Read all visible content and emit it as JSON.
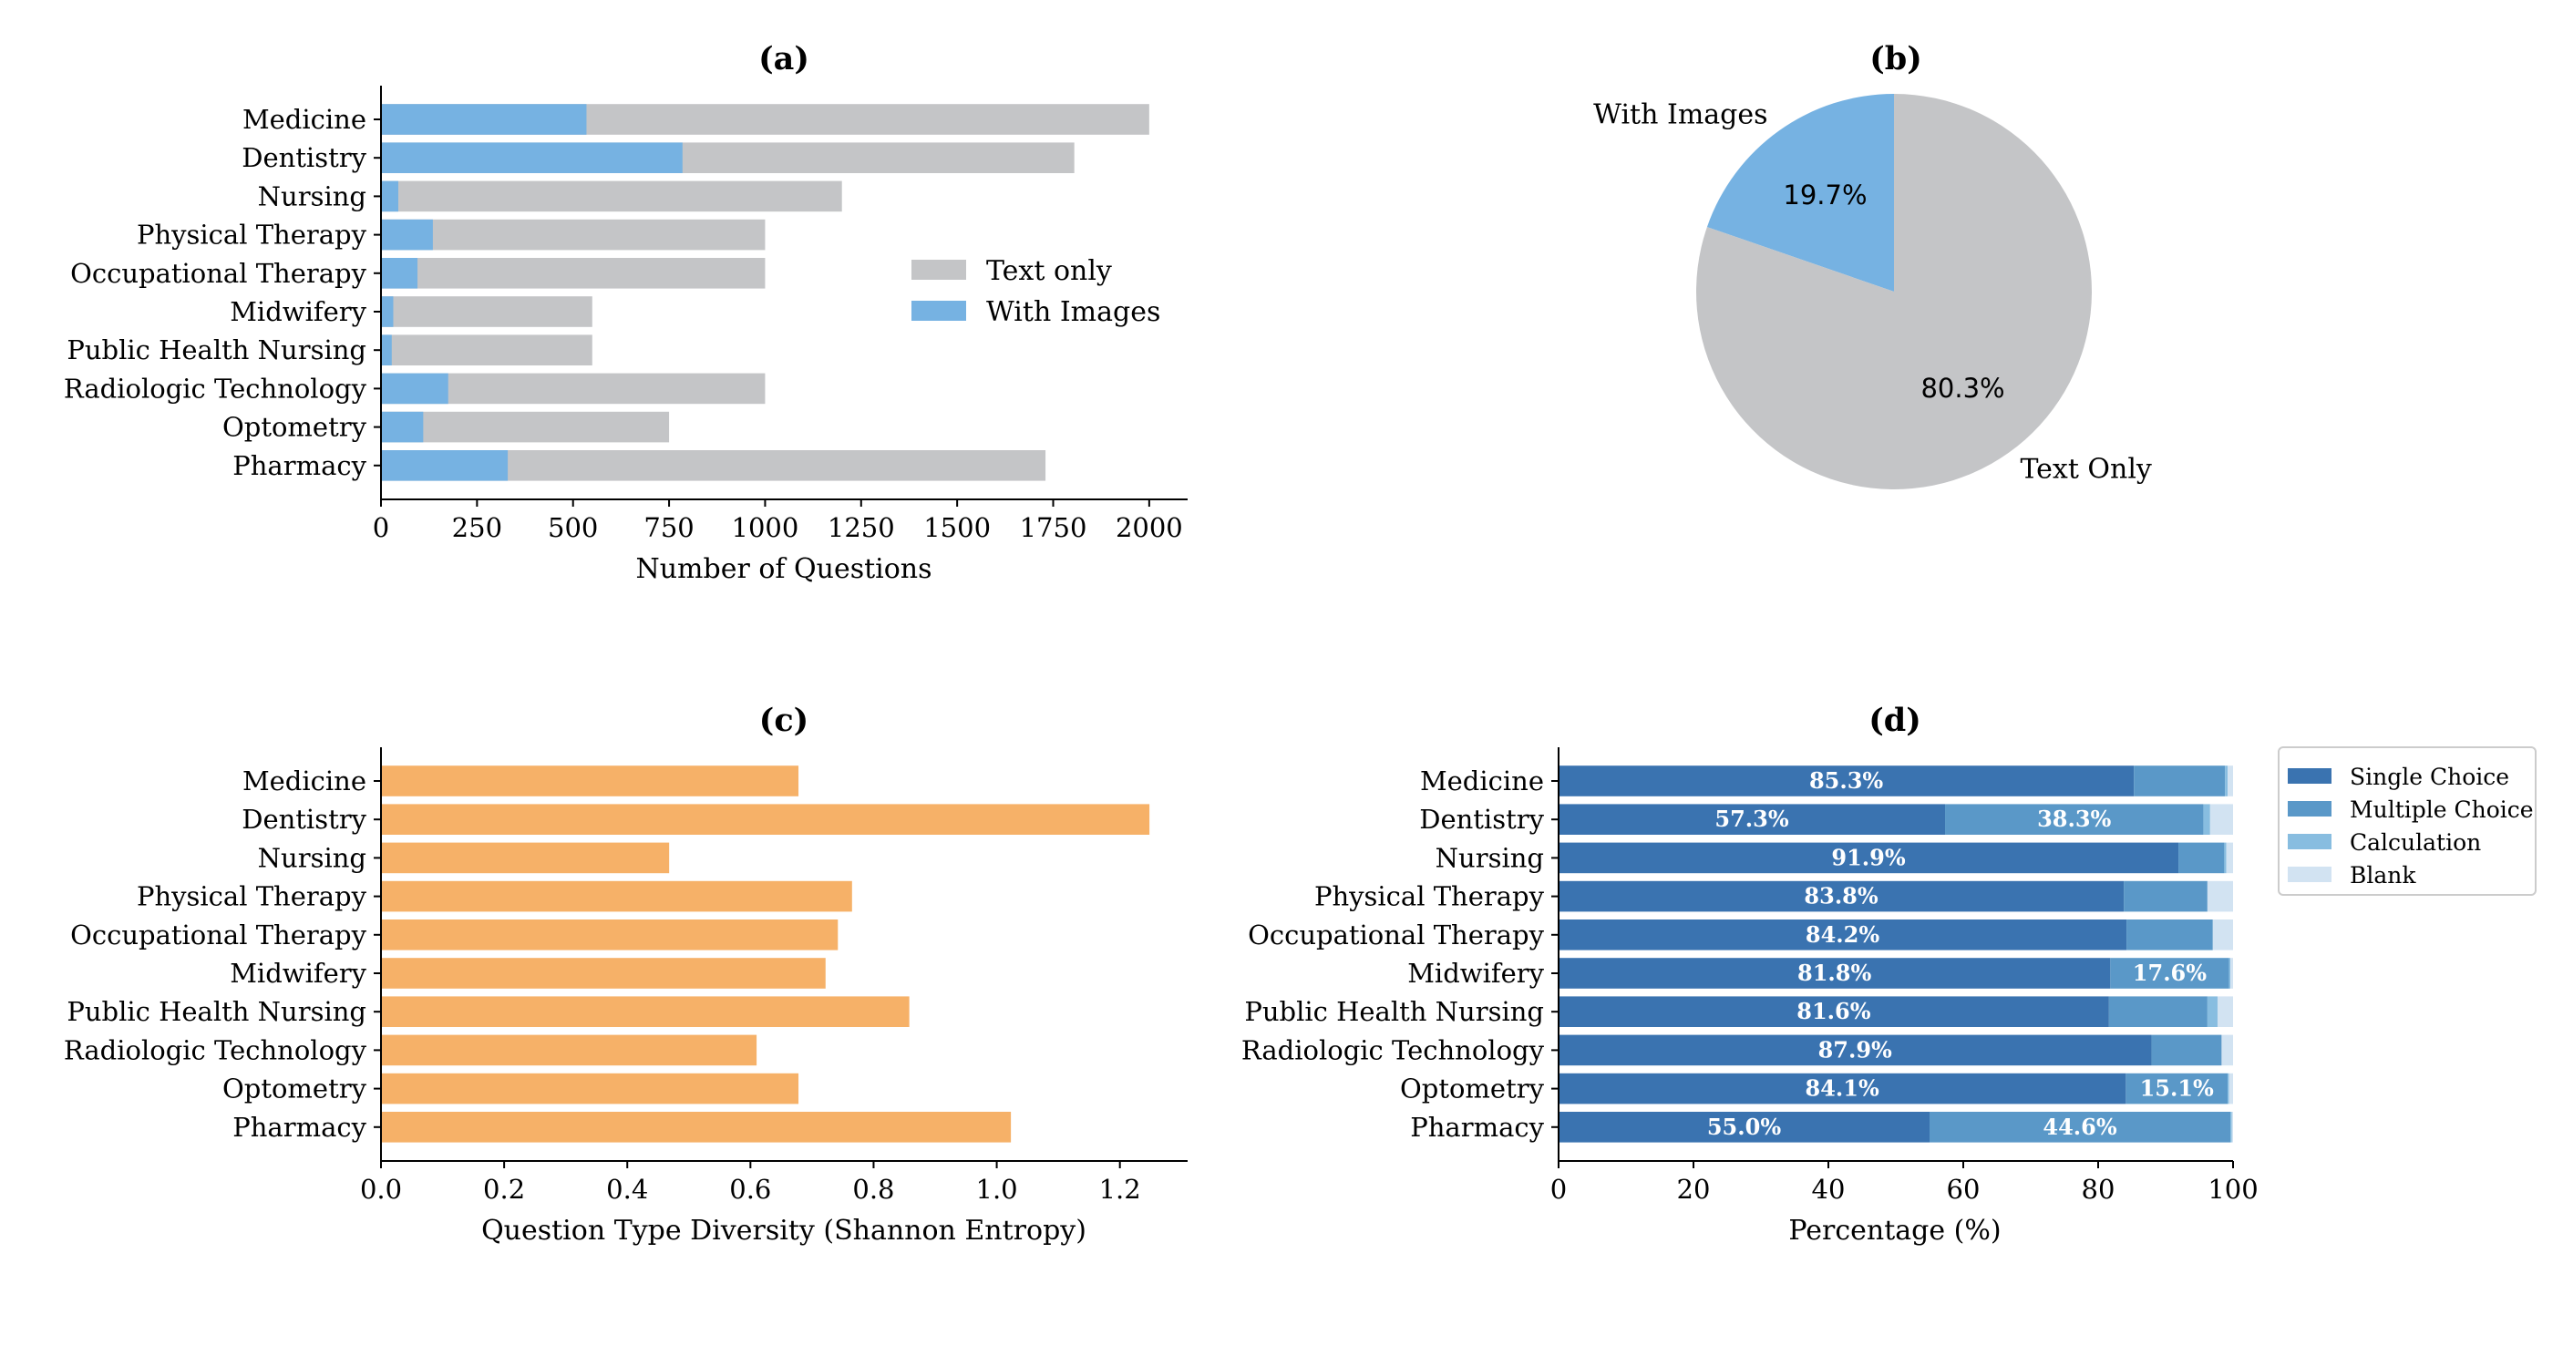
{
  "colors": {
    "text_only": "#c4c5c7",
    "with_images": "#76b2e2",
    "diversity": "#f6b168",
    "single_choice": "#3a73b0",
    "multiple_choice": "#5a98c8",
    "calculation": "#88bde0",
    "blank": "#d2e3f2"
  },
  "chart_data": [
    {
      "id": "a",
      "type": "bar",
      "orientation": "horizontal",
      "stacked": "overlay",
      "title": "(a)",
      "xlabel": "Number of Questions",
      "ylabel": "",
      "xlim": [
        0,
        2100
      ],
      "xticks": [
        0,
        250,
        500,
        750,
        1000,
        1250,
        1500,
        1750,
        2000
      ],
      "xtick_labels": [
        "0",
        "250",
        "500",
        "750",
        "1000",
        "1250",
        "1500",
        "1750",
        "2000"
      ],
      "categories": [
        "Medicine",
        "Dentistry",
        "Nursing",
        "Physical Therapy",
        "Occupational Therapy",
        "Midwifery",
        "Public Health Nursing",
        "Radiologic Technology",
        "Optometry",
        "Pharmacy"
      ],
      "series": [
        {
          "name": "Text only",
          "values": [
            2000,
            1805,
            1200,
            1000,
            1000,
            550,
            550,
            1000,
            750,
            1730
          ]
        },
        {
          "name": "With Images",
          "values": [
            535,
            785,
            45,
            135,
            95,
            32,
            28,
            175,
            110,
            330
          ]
        }
      ],
      "legend": {
        "position": "center-right",
        "entries": [
          "Text only",
          "With Images"
        ]
      }
    },
    {
      "id": "b",
      "type": "pie",
      "title": "(b)",
      "slices": [
        {
          "name": "With Images",
          "value": 19.7,
          "label": "19.7%"
        },
        {
          "name": "Text Only",
          "value": 80.3,
          "label": "80.3%"
        }
      ]
    },
    {
      "id": "c",
      "type": "bar",
      "orientation": "horizontal",
      "title": "(c)",
      "xlabel": "Question Type Diversity (Shannon Entropy)",
      "ylabel": "",
      "xlim": [
        0,
        1.31
      ],
      "xticks": [
        0,
        0.2,
        0.4,
        0.6,
        0.8,
        1.0,
        1.2
      ],
      "xtick_labels": [
        "0.0",
        "0.2",
        "0.4",
        "0.6",
        "0.8",
        "1.0",
        "1.2"
      ],
      "categories": [
        "Medicine",
        "Dentistry",
        "Nursing",
        "Physical Therapy",
        "Occupational Therapy",
        "Midwifery",
        "Public Health Nursing",
        "Radiologic Technology",
        "Optometry",
        "Pharmacy"
      ],
      "values": [
        0.678,
        1.248,
        0.468,
        0.765,
        0.742,
        0.722,
        0.858,
        0.61,
        0.678,
        1.023
      ]
    },
    {
      "id": "d",
      "type": "bar",
      "orientation": "horizontal",
      "stacked": true,
      "title": "(d)",
      "xlabel": "Percentage (%)",
      "ylabel": "",
      "xlim": [
        0,
        100
      ],
      "xticks": [
        0,
        20,
        40,
        60,
        80,
        100
      ],
      "xtick_labels": [
        "0",
        "20",
        "40",
        "60",
        "80",
        "100"
      ],
      "categories": [
        "Medicine",
        "Dentistry",
        "Nursing",
        "Physical Therapy",
        "Occupational Therapy",
        "Midwifery",
        "Public Health Nursing",
        "Radiologic Technology",
        "Optometry",
        "Pharmacy"
      ],
      "series": [
        {
          "name": "Single Choice",
          "values": [
            85.3,
            57.3,
            91.9,
            83.8,
            84.2,
            81.8,
            81.6,
            87.9,
            84.1,
            55.0
          ],
          "labels": [
            "85.3%",
            "57.3%",
            "91.9%",
            "83.8%",
            "84.2%",
            "81.8%",
            "81.6%",
            "87.9%",
            "84.1%",
            "55.0%"
          ]
        },
        {
          "name": "Multiple Choice",
          "values": [
            13.5,
            38.3,
            6.8,
            12.4,
            12.8,
            17.6,
            14.6,
            10.4,
            15.1,
            44.6
          ],
          "labels": [
            "",
            "38.3%",
            "",
            "",
            "",
            "17.6%",
            "",
            "",
            "15.1%",
            "44.6%"
          ]
        },
        {
          "name": "Calculation",
          "values": [
            0.4,
            1.0,
            0.3,
            0.0,
            0.0,
            0.2,
            1.5,
            0.0,
            0.2,
            0.2
          ],
          "labels": [
            "",
            "",
            "",
            "",
            "",
            "",
            "",
            "",
            "",
            ""
          ]
        },
        {
          "name": "Blank",
          "values": [
            0.8,
            3.4,
            1.0,
            3.8,
            3.0,
            0.4,
            2.3,
            1.7,
            0.6,
            0.2
          ],
          "labels": [
            "",
            "",
            "",
            "",
            "",
            "",
            "",
            "",
            "",
            ""
          ]
        }
      ],
      "legend": {
        "position": "outside-right-top",
        "entries": [
          "Single Choice",
          "Multiple Choice",
          "Calculation",
          "Blank"
        ]
      }
    }
  ]
}
